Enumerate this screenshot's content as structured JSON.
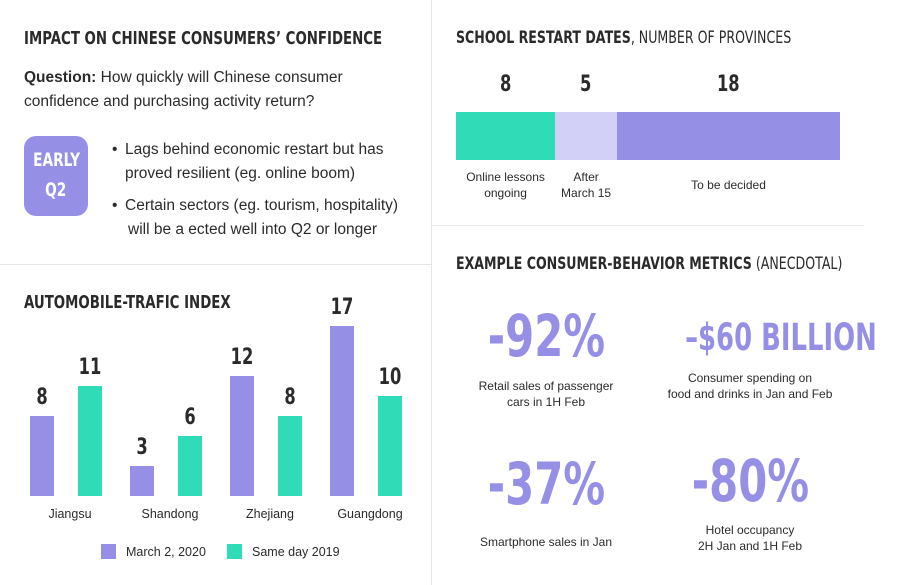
{
  "impact": {
    "title": "IMPACT ON CHINESE CONSUMERS’ CONFIDENCE",
    "question_label": "Question:",
    "question_text": " How quickly will Chinese consumer confidence and purchasing activity return?",
    "badge_line1": "EARLY",
    "badge_line2": "Q2",
    "bullets": [
      {
        "line1": "Lags behind economic restart but has",
        "line2": "proved resilient (eg. online boom)"
      },
      {
        "line1": "Certain sectors (eg. tourism, hospitality)",
        "line2": "will be a  ected well into Q2 or longer"
      }
    ]
  },
  "automobile": {
    "title": "AUTOMOBILE-TRAFIC INDEX"
  },
  "chart_data": [
    {
      "type": "bar",
      "title": "AUTOMOBILE-TRAFIC INDEX",
      "categories": [
        "Jiangsu",
        "Shandong",
        "Zhejiang",
        "Guangdong"
      ],
      "series": [
        {
          "name": "March 2, 2020",
          "values": [
            8,
            3,
            12,
            17
          ],
          "color": "#9590e6"
        },
        {
          "name": "Same day 2019",
          "values": [
            11,
            6,
            8,
            10
          ],
          "color": "#30dcb8"
        }
      ],
      "ylim": [
        0,
        17
      ],
      "grid": false,
      "legend": "bottom"
    },
    {
      "type": "bar",
      "title": "SCHOOL RESTART DATES",
      "subtitle": ", NUMBER OF PROVINCES",
      "segments": [
        {
          "label_line1": "Online lessons",
          "label_line2": "ongoing",
          "value": 8,
          "color": "#30dcb8"
        },
        {
          "label_line1": "After",
          "label_line2": "March 15",
          "value": 5,
          "color": "#d2d0f7"
        },
        {
          "label_line1": "To be decided",
          "label_line2": "",
          "value": 18,
          "color": "#9590e6"
        }
      ]
    }
  ],
  "metrics": {
    "title": "EXAMPLE CONSUMER-BEHAVIOR METRICS",
    "subtitle": " (ANECDOTAL)",
    "items": [
      {
        "value": "-92%",
        "desc_line1": "Retail sales of passenger",
        "desc_line2": "cars in 1H Feb"
      },
      {
        "value": "–$60 BILLION",
        "desc_line1": "Consumer spending on",
        "desc_line2": "food and drinks in Jan and Feb"
      },
      {
        "value": "-37%",
        "desc_line1": "Smartphone sales in Jan",
        "desc_line2": ""
      },
      {
        "value": "-80%",
        "desc_line1": "Hotel occupancy",
        "desc_line2": "2H Jan and 1H Feb"
      }
    ],
    "color": "#9590e6"
  }
}
